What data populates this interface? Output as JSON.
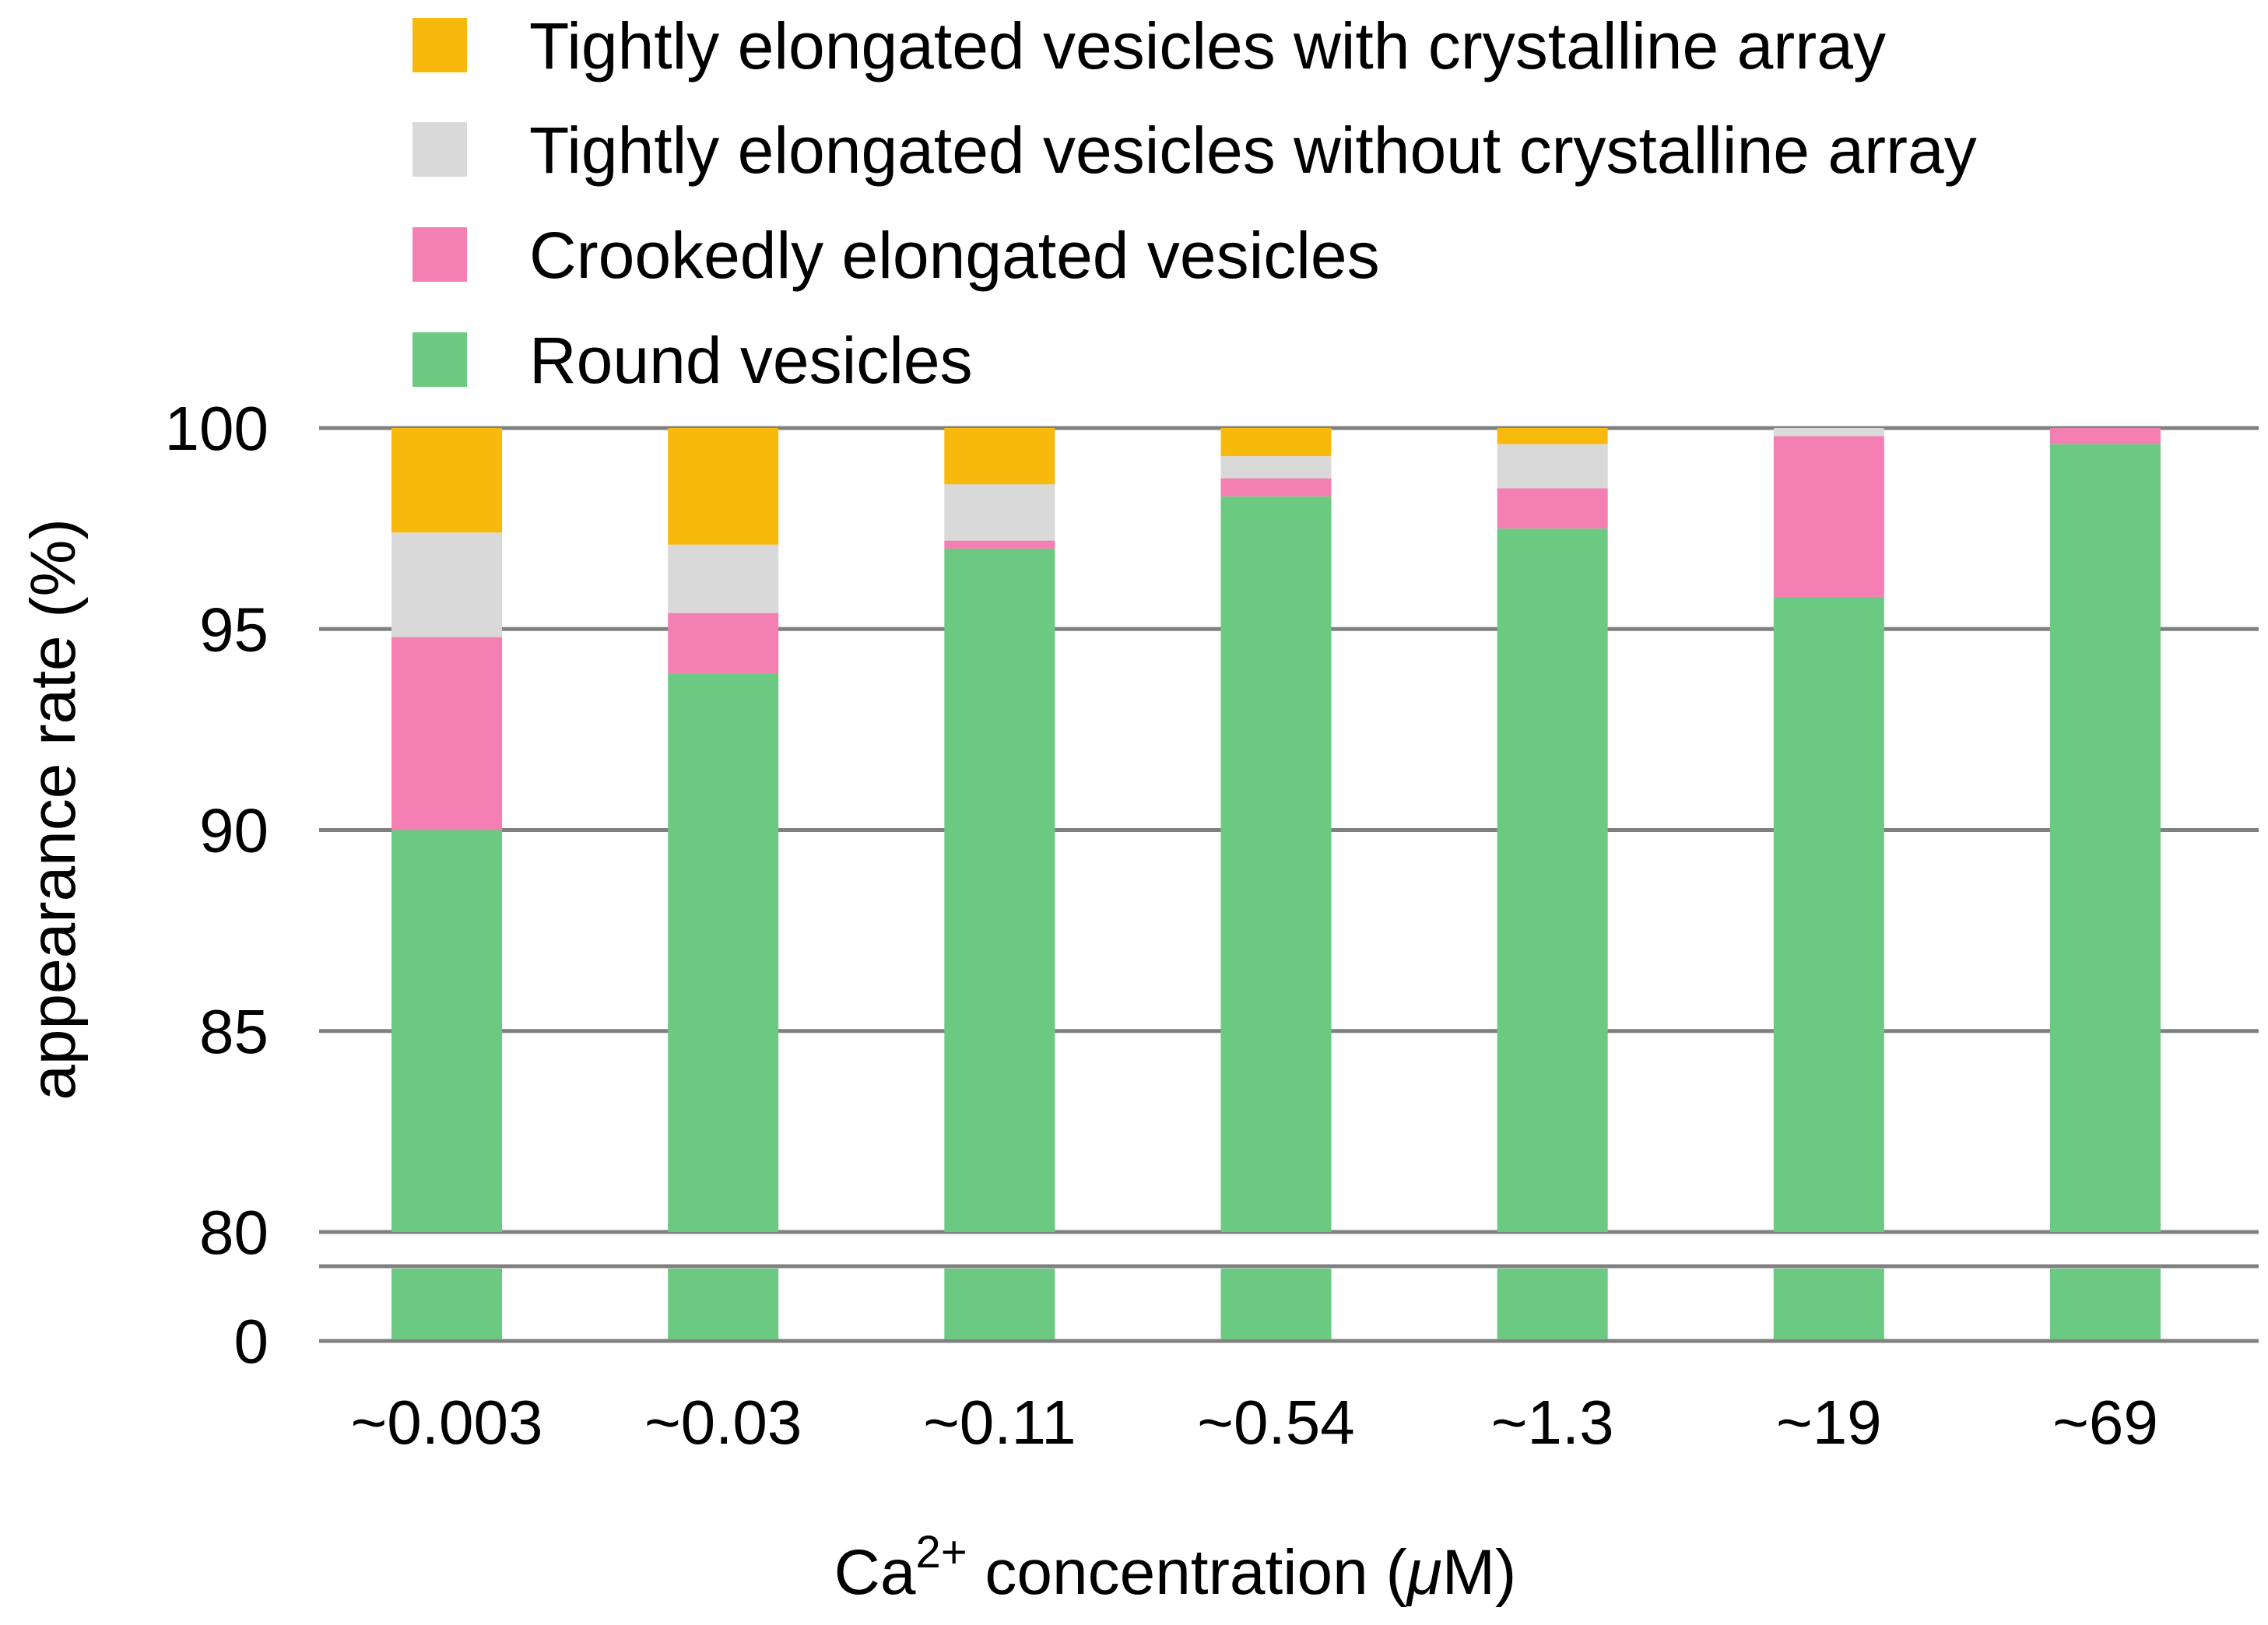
{
  "chart_data": {
    "type": "bar",
    "stacked": true,
    "categories": [
      "~0.003",
      "~0.03",
      "~0.11",
      "~0.54",
      "~1.3",
      "~19",
      "~69"
    ],
    "series": [
      {
        "name": "Round vesicles",
        "color": "#6cc982",
        "values": [
          90.0,
          93.9,
          97.0,
          98.3,
          97.5,
          95.8,
          99.6
        ]
      },
      {
        "name": "Crookedly elongated vesicles",
        "color": "#f47fb3",
        "values": [
          4.8,
          1.5,
          0.2,
          0.45,
          1.0,
          4.0,
          0.4
        ]
      },
      {
        "name": "Tightly elongated vesicles without crystalline array",
        "color": "#d9d9d9",
        "values": [
          2.6,
          1.7,
          1.4,
          0.55,
          1.1,
          0.2,
          0.0
        ]
      },
      {
        "name": "Tightly elongated vesicles with crystalline array",
        "color": "#f8b90d",
        "values": [
          2.6,
          2.9,
          1.4,
          0.7,
          0.4,
          0.0,
          0.0
        ]
      }
    ],
    "legend_order": [
      "Tightly elongated vesicles with crystalline array",
      "Tightly elongated vesicles without crystalline array",
      "Crookedly elongated vesicles",
      "Round vesicles"
    ],
    "y_axis": {
      "broken": true,
      "ticks": [
        "100",
        "95",
        "90",
        "85",
        "80",
        "0"
      ],
      "upper_range": [
        80,
        100
      ],
      "lower_range": [
        0,
        0
      ],
      "label": "appearance rate (%)"
    },
    "x_axis": {
      "label_prefix": "Ca",
      "label_superscript": "2+",
      "label_suffix": " concentration (",
      "label_unit_italic": "μ",
      "label_unit_rest": "M)"
    },
    "grid": true,
    "legend_position": "top"
  }
}
